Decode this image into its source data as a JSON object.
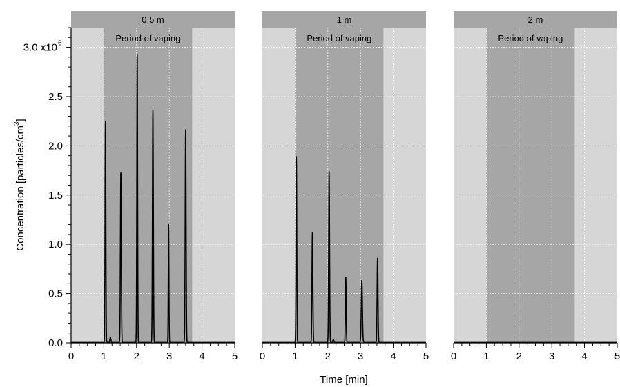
{
  "chart_data": {
    "type": "line",
    "y_axis": {
      "label": "Concentration [particles/cm",
      "label_superscript": "3",
      "label_suffix": "]",
      "ylim": [
        0,
        3.2
      ],
      "ticks": [
        0.0,
        0.5,
        1.0,
        1.5,
        2.0,
        2.5,
        3.0
      ],
      "tick_labels": [
        "0.0",
        "0.5",
        "1.0",
        "1.5",
        "2.0",
        "2.5",
        "3.0 x10"
      ],
      "exponent": "6",
      "minor_step": 0.1
    },
    "x_axis": {
      "label": "Time [min]",
      "xlim": [
        0,
        5
      ],
      "ticks": [
        0,
        1,
        2,
        3,
        4,
        5
      ],
      "tick_labels": [
        "0",
        "1",
        "2",
        "3",
        "4",
        "5"
      ]
    },
    "grid": true,
    "band": {
      "label": "Period of vaping",
      "x_start": 1.0,
      "x_end": 3.7
    },
    "colors": {
      "background": "#d6d6d6",
      "band": "#a6a6a6",
      "title_bar": "#a6a6a6",
      "trace": "#000000"
    },
    "panels": [
      {
        "title": "0.5 m",
        "peaks": [
          {
            "x": 1.05,
            "height": 2.24,
            "width": 0.03
          },
          {
            "x": 1.2,
            "height": 0.05,
            "width": 0.04
          },
          {
            "x": 1.52,
            "height": 1.73,
            "width": 0.035
          },
          {
            "x": 2.02,
            "height": 2.94,
            "width": 0.03
          },
          {
            "x": 2.5,
            "height": 2.36,
            "width": 0.035
          },
          {
            "x": 2.98,
            "height": 1.21,
            "width": 0.025
          },
          {
            "x": 3.5,
            "height": 2.16,
            "width": 0.035
          }
        ]
      },
      {
        "title": "1 m",
        "peaks": [
          {
            "x": 1.04,
            "height": 1.89,
            "width": 0.03
          },
          {
            "x": 1.53,
            "height": 1.12,
            "width": 0.035
          },
          {
            "x": 2.04,
            "height": 1.74,
            "width": 0.035
          },
          {
            "x": 2.17,
            "height": 0.03,
            "width": 0.04
          },
          {
            "x": 2.55,
            "height": 0.66,
            "width": 0.03
          },
          {
            "x": 3.04,
            "height": 0.63,
            "width": 0.045
          },
          {
            "x": 3.52,
            "height": 0.86,
            "width": 0.035
          }
        ]
      },
      {
        "title": "2 m",
        "peaks": []
      }
    ]
  }
}
